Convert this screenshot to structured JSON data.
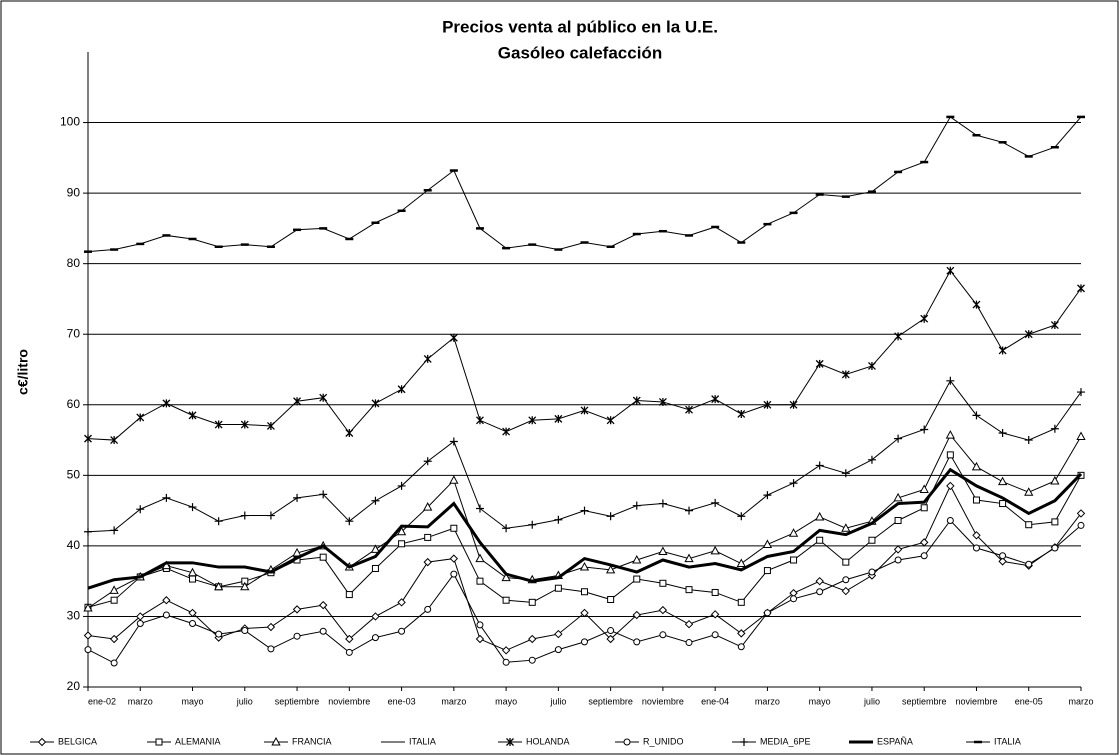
{
  "chart_data": {
    "type": "line",
    "title": "Precios venta al público en la U.E.",
    "subtitle": "Gasóleo calefacción",
    "y_label": "c€/litro",
    "categories": [
      "ene-02",
      null,
      "marzo",
      null,
      "mayo",
      null,
      "julio",
      null,
      "septiembre",
      null,
      "noviembre",
      null,
      "ene-03",
      null,
      "marzo",
      null,
      "mayo",
      null,
      "julio",
      null,
      "septiembre",
      null,
      "noviembre",
      null,
      "ene-04",
      null,
      "marzo",
      null,
      "mayo",
      null,
      "julio",
      null,
      "septiembre",
      null,
      "noviembre",
      null,
      "ene-05",
      null,
      "marzo"
    ],
    "ylim": [
      20,
      110
    ],
    "yticks": [
      20,
      30,
      40,
      50,
      60,
      70,
      80,
      90,
      100
    ],
    "grid": true,
    "legend": "bottom",
    "series": [
      {
        "name": "BELGICA",
        "color": "#000000",
        "marker": "diamond",
        "width": 1,
        "values": [
          27.3,
          26.8,
          30,
          32.3,
          30.5,
          27,
          28.3,
          28.5,
          31,
          31.6,
          26.8,
          30,
          32,
          37.7,
          38.2,
          26.8,
          25.2,
          26.8,
          27.5,
          30.5,
          26.8,
          30.2,
          30.9,
          28.9,
          30.3,
          27.6,
          30.5,
          33.3,
          35,
          33.6,
          35.8,
          39.5,
          40.5,
          48.5,
          41.5,
          37.8,
          37.2,
          39.8,
          44.6
        ]
      },
      {
        "name": "ALEMANIA",
        "color": "#000000",
        "marker": "square",
        "width": 1,
        "values": [
          31.3,
          32.3,
          35.6,
          36.8,
          35.3,
          34.2,
          35,
          36.2,
          38,
          38.4,
          33.1,
          36.8,
          40.3,
          41.2,
          42.5,
          35,
          32.3,
          32,
          34,
          33.5,
          32.4,
          35.3,
          34.7,
          33.8,
          33.4,
          32,
          36.5,
          38,
          40.8,
          37.7,
          40.8,
          43.6,
          45.4,
          52.9,
          46.5,
          46,
          43,
          43.4,
          50
        ]
      },
      {
        "name": "FRANCIA",
        "color": "#000000",
        "marker": "triangle",
        "width": 1,
        "values": [
          31.2,
          33.7,
          35.6,
          37.2,
          36.2,
          34.2,
          34.2,
          36.6,
          39,
          40,
          37,
          39.5,
          42,
          45.5,
          49.3,
          38.2,
          35.5,
          35.2,
          35.8,
          37,
          36.6,
          38,
          39.2,
          38.2,
          39.3,
          37.5,
          40.2,
          41.8,
          44.1,
          42.5,
          43.5,
          46.8,
          48,
          55.7,
          51.2,
          49.1,
          47.6,
          49.2,
          55.5
        ]
      },
      {
        "name": "ITALIA",
        "color": "#000000",
        "marker": "none",
        "width": 1,
        "values": [
          null,
          null,
          null,
          null,
          null,
          null,
          null,
          null,
          null,
          null,
          null,
          null,
          null,
          null,
          null,
          null,
          null,
          null,
          null,
          null,
          null,
          null,
          null,
          null,
          null,
          null,
          null,
          null,
          null,
          null,
          null,
          null,
          null,
          null,
          null,
          null,
          null,
          null,
          null
        ]
      },
      {
        "name": "HOLANDA",
        "color": "#000000",
        "marker": "x",
        "width": 1,
        "values": [
          55.2,
          55,
          58.2,
          60.2,
          58.5,
          57.2,
          57.2,
          57,
          60.5,
          61,
          56,
          60.2,
          62.2,
          66.5,
          69.5,
          57.8,
          56.2,
          57.8,
          58,
          59.2,
          57.8,
          60.6,
          60.4,
          59.3,
          60.8,
          58.7,
          60,
          60,
          65.8,
          64.3,
          65.5,
          69.7,
          72.2,
          79,
          74.2,
          67.7,
          70,
          71.3,
          76.5
        ]
      },
      {
        "name": "R_UNIDO",
        "color": "#000000",
        "marker": "circle",
        "width": 1,
        "values": [
          25.3,
          23.4,
          29,
          30.2,
          29,
          27.5,
          28,
          25.4,
          27.2,
          27.9,
          24.9,
          27,
          27.9,
          31,
          36,
          28.8,
          23.5,
          23.8,
          25.3,
          26.4,
          28,
          26.4,
          27.4,
          26.3,
          27.4,
          25.7,
          30.5,
          32.5,
          33.5,
          35.2,
          36.3,
          38,
          38.6,
          43.6,
          39.7,
          38.6,
          37.4,
          39.7,
          42.9
        ]
      },
      {
        "name": "MEDIA_6PE",
        "color": "#000000",
        "marker": "plus",
        "width": 1,
        "values": [
          42,
          42.2,
          45.2,
          46.8,
          45.5,
          43.5,
          44.3,
          44.3,
          46.8,
          47.3,
          43.5,
          46.4,
          48.5,
          52,
          54.8,
          45.3,
          42.5,
          43,
          43.7,
          45,
          44.2,
          45.7,
          46,
          45,
          46.1,
          44.2,
          47.2,
          48.9,
          51.4,
          50.3,
          52.2,
          55.2,
          56.5,
          63.4,
          58.5,
          56,
          55,
          56.6,
          61.8
        ]
      },
      {
        "name": "ESPAÑA",
        "color": "#000000",
        "marker": "none",
        "width": 3,
        "values": [
          34,
          35.2,
          35.6,
          37.6,
          37.6,
          37,
          37,
          36.3,
          38.3,
          40,
          37,
          38.5,
          42.8,
          42.7,
          46,
          40.5,
          36,
          35,
          35.5,
          38.2,
          37.3,
          36.3,
          38,
          37,
          37.5,
          36.6,
          38.5,
          39.2,
          42.2,
          41.6,
          43.2,
          46,
          46.2,
          50.8,
          48.5,
          46.8,
          44.6,
          46.4,
          50.2
        ]
      },
      {
        "name": "ITALIA",
        "color": "#000000",
        "marker": "dash",
        "width": 1,
        "values": [
          81.7,
          82,
          82.8,
          84,
          83.5,
          82.4,
          82.7,
          82.4,
          84.8,
          85,
          83.5,
          85.8,
          87.5,
          90.4,
          93.2,
          85,
          82.2,
          82.7,
          82,
          83,
          82.4,
          84.2,
          84.6,
          84,
          85.2,
          83,
          85.6,
          87.2,
          89.8,
          89.5,
          90.2,
          93,
          94.4,
          100.8,
          98.2,
          97.2,
          95.2,
          96.5,
          100.8
        ]
      }
    ]
  }
}
